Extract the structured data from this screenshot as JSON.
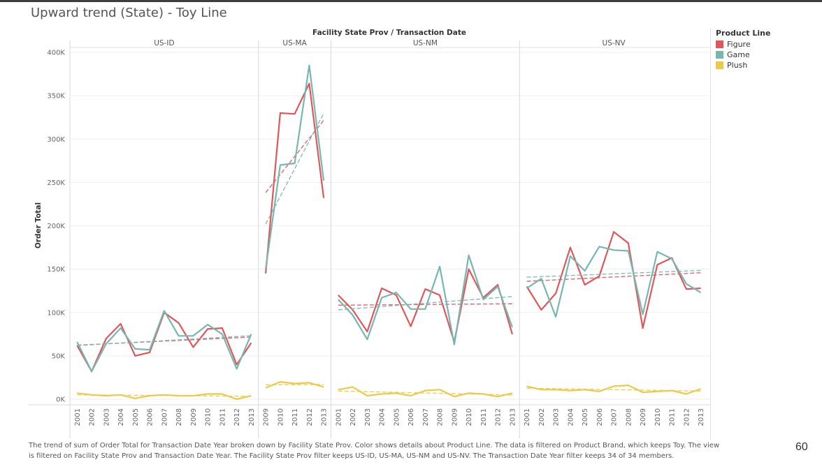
{
  "title": "Upward trend (State) - Toy Line",
  "caption": "The trend of sum of Order Total for Transaction Date Year broken down by Facility State Prov.  Color shows details about Product Line. The data is filtered on Product Brand, which keeps Toy. The view is filtered on Facility State Prov and Transaction Date Year. The Facility State Prov filter keeps US-ID, US-MA, US-NM and US-NV. The Transaction Date Year filter keeps 34 of 34 members.",
  "page_number": "60",
  "legend": {
    "title": "Product Line",
    "items": [
      {
        "label": "Figure",
        "color": "#E15759"
      },
      {
        "label": "Game",
        "color": "#76B7B2"
      },
      {
        "label": "Plush",
        "color": "#EDC948"
      }
    ]
  },
  "chart_data": {
    "type": "line",
    "title": "Upward trend (State) - Toy Line",
    "column_header": "Facility State Prov / Transaction Date",
    "ylabel": "Order Total",
    "ylim": [
      0,
      400000
    ],
    "yticks": [
      0,
      50000,
      100000,
      150000,
      200000,
      250000,
      300000,
      350000,
      400000
    ],
    "ytick_labels": [
      "0K",
      "50K",
      "100K",
      "150K",
      "200K",
      "250K",
      "300K",
      "350K",
      "400K"
    ],
    "trend_lines": "linear, dashed, per series per panel",
    "panels": [
      {
        "name": "US-ID",
        "years": [
          "2001",
          "2002",
          "2003",
          "2004",
          "2005",
          "2006",
          "2007",
          "2008",
          "2009",
          "2010",
          "2011",
          "2012",
          "2013"
        ],
        "series": [
          {
            "name": "Figure",
            "values": [
              62000,
              32000,
              70000,
              87000,
              50000,
              54000,
              100000,
              88000,
              60000,
              81000,
              82000,
              40000,
              65000
            ]
          },
          {
            "name": "Game",
            "values": [
              66000,
              32000,
              64000,
              82000,
              58000,
              57000,
              102000,
              73000,
              73000,
              86000,
              75000,
              35000,
              75000
            ]
          },
          {
            "name": "Plush",
            "values": [
              7000,
              5000,
              4000,
              5000,
              1000,
              4000,
              5000,
              4000,
              4000,
              6000,
              6000,
              0,
              4000
            ]
          }
        ]
      },
      {
        "name": "US-MA",
        "years": [
          "2009",
          "2010",
          "2011",
          "2012",
          "2013"
        ],
        "series": [
          {
            "name": "Figure",
            "values": [
              145000,
              330000,
              329000,
              364000,
              232000
            ]
          },
          {
            "name": "Game",
            "values": [
              150000,
              270000,
              272000,
              385000,
              252000
            ]
          },
          {
            "name": "Plush",
            "values": [
              13000,
              20000,
              18000,
              19000,
              14000
            ]
          }
        ]
      },
      {
        "name": "US-NM",
        "years": [
          "2001",
          "2002",
          "2003",
          "2004",
          "2005",
          "2006",
          "2007",
          "2008",
          "2009",
          "2010",
          "2011",
          "2012",
          "2013"
        ],
        "series": [
          {
            "name": "Figure",
            "values": [
              120000,
              103000,
              78000,
              128000,
              120000,
              84000,
              127000,
              120000,
              66000,
              150000,
              117000,
              132000,
              75000
            ]
          },
          {
            "name": "Game",
            "values": [
              115000,
              97000,
              69000,
              117000,
              123000,
              104000,
              104000,
              153000,
              63000,
              166000,
              115000,
              130000,
              83000
            ]
          },
          {
            "name": "Plush",
            "values": [
              11000,
              14000,
              4000,
              6000,
              7000,
              4000,
              10000,
              11000,
              3000,
              7000,
              6000,
              3000,
              7000
            ]
          }
        ]
      },
      {
        "name": "US-NV",
        "years": [
          "2001",
          "2002",
          "2003",
          "2004",
          "2005",
          "2006",
          "2007",
          "2008",
          "2009",
          "2010",
          "2011",
          "2012",
          "2013"
        ],
        "series": [
          {
            "name": "Figure",
            "values": [
              130000,
              103000,
              122000,
              175000,
              132000,
              142000,
              193000,
              180000,
              82000,
              155000,
              163000,
              127000,
              128000
            ]
          },
          {
            "name": "Game",
            "values": [
              128000,
              139000,
              95000,
              165000,
              148000,
              176000,
              172000,
              171000,
              98000,
              170000,
              162000,
              133000,
              123000
            ]
          },
          {
            "name": "Plush",
            "values": [
              15000,
              11000,
              11000,
              10000,
              11000,
              9000,
              15000,
              16000,
              8000,
              9000,
              10000,
              6000,
              12000
            ]
          }
        ]
      }
    ]
  }
}
